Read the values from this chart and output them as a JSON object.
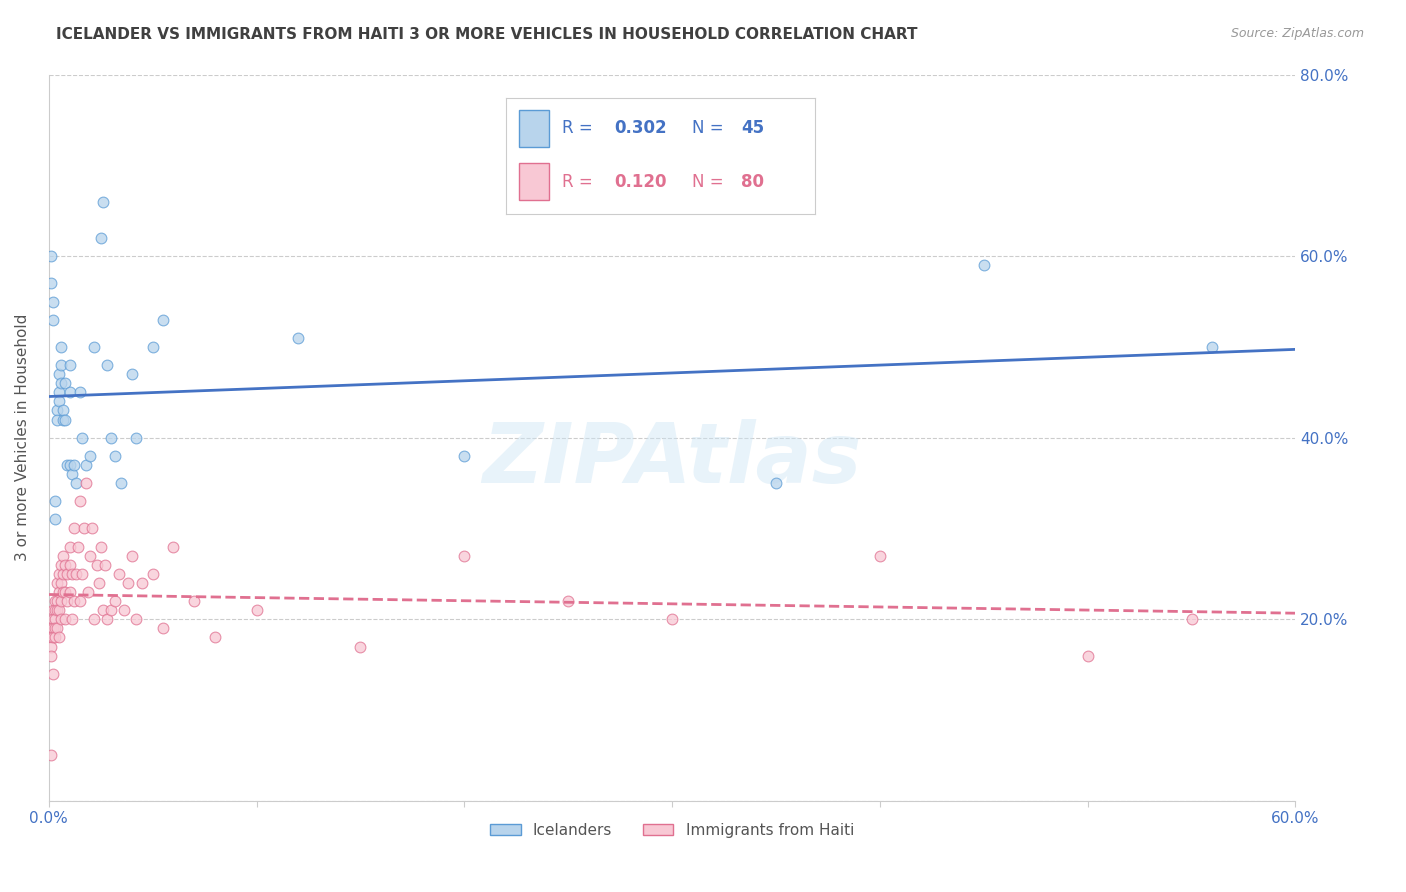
{
  "title": "ICELANDER VS IMMIGRANTS FROM HAITI 3 OR MORE VEHICLES IN HOUSEHOLD CORRELATION CHART",
  "source": "Source: ZipAtlas.com",
  "ylabel": "3 or more Vehicles in Household",
  "xlim": [
    0.0,
    0.6
  ],
  "ylim": [
    0.0,
    0.8
  ],
  "xticks": [
    0.0,
    0.1,
    0.2,
    0.3,
    0.4,
    0.5,
    0.6
  ],
  "yticks": [
    0.0,
    0.2,
    0.4,
    0.6,
    0.8
  ],
  "watermark": "ZIPAtlas",
  "series": [
    {
      "name": "Icelanders",
      "color": "#b8d4ec",
      "edge_color": "#5b9bd5",
      "R": 0.302,
      "N": 45,
      "trend_color": "#4472c4",
      "trend_style": "-",
      "x": [
        0.001,
        0.001,
        0.002,
        0.002,
        0.003,
        0.003,
        0.004,
        0.004,
        0.005,
        0.005,
        0.005,
        0.006,
        0.006,
        0.006,
        0.007,
        0.007,
        0.008,
        0.008,
        0.009,
        0.01,
        0.01,
        0.01,
        0.011,
        0.012,
        0.013,
        0.015,
        0.016,
        0.018,
        0.02,
        0.022,
        0.025,
        0.026,
        0.028,
        0.03,
        0.032,
        0.035,
        0.04,
        0.042,
        0.05,
        0.055,
        0.12,
        0.2,
        0.35,
        0.45,
        0.56
      ],
      "y": [
        0.6,
        0.57,
        0.55,
        0.53,
        0.33,
        0.31,
        0.43,
        0.42,
        0.47,
        0.45,
        0.44,
        0.5,
        0.48,
        0.46,
        0.43,
        0.42,
        0.46,
        0.42,
        0.37,
        0.48,
        0.45,
        0.37,
        0.36,
        0.37,
        0.35,
        0.45,
        0.4,
        0.37,
        0.38,
        0.5,
        0.62,
        0.66,
        0.48,
        0.4,
        0.38,
        0.35,
        0.47,
        0.4,
        0.5,
        0.53,
        0.51,
        0.38,
        0.35,
        0.59,
        0.5
      ]
    },
    {
      "name": "Immigrants from Haiti",
      "color": "#f8c8d4",
      "edge_color": "#e07090",
      "R": 0.12,
      "N": 80,
      "trend_color": "#e07090",
      "trend_style": "--",
      "x": [
        0.001,
        0.001,
        0.001,
        0.001,
        0.001,
        0.002,
        0.002,
        0.002,
        0.002,
        0.002,
        0.003,
        0.003,
        0.003,
        0.003,
        0.003,
        0.004,
        0.004,
        0.004,
        0.004,
        0.005,
        0.005,
        0.005,
        0.005,
        0.006,
        0.006,
        0.006,
        0.006,
        0.007,
        0.007,
        0.007,
        0.008,
        0.008,
        0.008,
        0.009,
        0.009,
        0.01,
        0.01,
        0.01,
        0.011,
        0.011,
        0.012,
        0.012,
        0.013,
        0.014,
        0.015,
        0.015,
        0.016,
        0.017,
        0.018,
        0.019,
        0.02,
        0.021,
        0.022,
        0.023,
        0.024,
        0.025,
        0.026,
        0.027,
        0.028,
        0.03,
        0.032,
        0.034,
        0.036,
        0.038,
        0.04,
        0.042,
        0.045,
        0.05,
        0.055,
        0.06,
        0.07,
        0.08,
        0.1,
        0.15,
        0.2,
        0.25,
        0.3,
        0.4,
        0.5,
        0.55
      ],
      "y": [
        0.19,
        0.18,
        0.17,
        0.16,
        0.05,
        0.21,
        0.2,
        0.19,
        0.18,
        0.14,
        0.22,
        0.21,
        0.2,
        0.19,
        0.18,
        0.24,
        0.22,
        0.21,
        0.19,
        0.25,
        0.23,
        0.21,
        0.18,
        0.26,
        0.24,
        0.22,
        0.2,
        0.27,
        0.25,
        0.23,
        0.26,
        0.23,
        0.2,
        0.25,
        0.22,
        0.28,
        0.26,
        0.23,
        0.25,
        0.2,
        0.3,
        0.22,
        0.25,
        0.28,
        0.33,
        0.22,
        0.25,
        0.3,
        0.35,
        0.23,
        0.27,
        0.3,
        0.2,
        0.26,
        0.24,
        0.28,
        0.21,
        0.26,
        0.2,
        0.21,
        0.22,
        0.25,
        0.21,
        0.24,
        0.27,
        0.2,
        0.24,
        0.25,
        0.19,
        0.28,
        0.22,
        0.18,
        0.21,
        0.17,
        0.27,
        0.22,
        0.2,
        0.27,
        0.16,
        0.2
      ]
    }
  ],
  "legend_colors": {
    "icelander_box": "#b8d4ec",
    "icelander_border": "#5b9bd5",
    "haiti_box": "#f8c8d4",
    "haiti_border": "#e07090",
    "text_blue": "#4472c4",
    "text_pink": "#e07090"
  },
  "background_color": "#ffffff",
  "grid_color": "#cccccc",
  "title_color": "#404040",
  "axis_label_color": "#555555",
  "tick_color": "#4472c4",
  "marker_size": 60,
  "alpha": 0.75
}
